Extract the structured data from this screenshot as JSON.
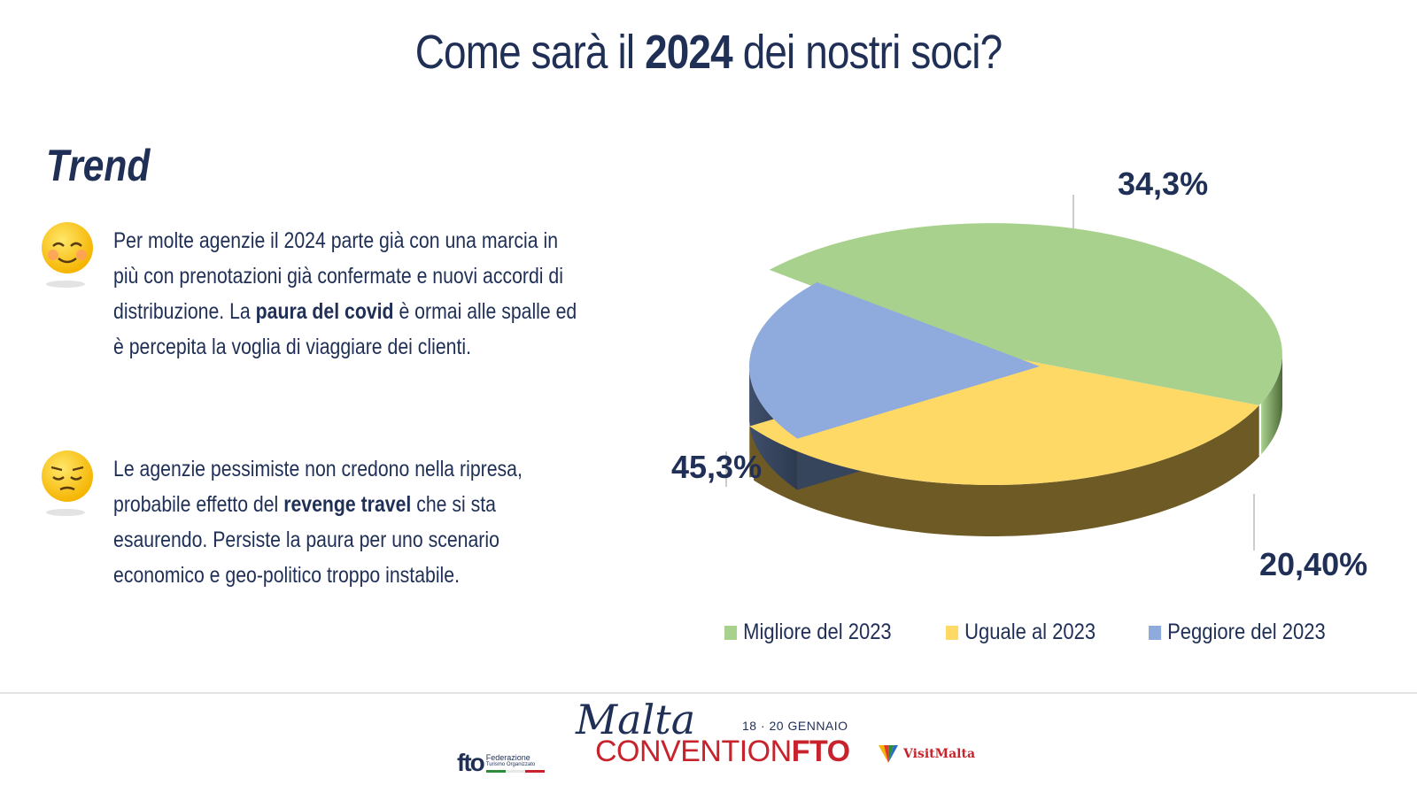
{
  "title": {
    "pre": "Come sarà il ",
    "bold": "2024",
    "post": " dei nostri soci?"
  },
  "section_title": "Trend",
  "paragraphs": [
    {
      "emoji": "smiling-blush-face-icon",
      "before": "Per molte agenzie il 2024 parte già con una marcia in più con prenotazioni già confermate e nuovi accordi di distribuzione. La ",
      "bold": "paura del covid",
      "after": " è ormai alle spalle ed è percepita la voglia di viaggiare dei clienti."
    },
    {
      "emoji": "pensive-face-icon",
      "before": "Le agenzie pessimiste non credono nella ripresa, probabile effetto del ",
      "bold": "revenge travel",
      "after": " che si sta esaurendo. Persiste la paura per uno scenario economico e geo-politico troppo instabile."
    }
  ],
  "chart_data": {
    "type": "pie",
    "style": "3d-exploded",
    "legend_position": "bottom",
    "categories": [
      "Migliore del 2023",
      "Uguale al 2023",
      "Peggiore del 2023"
    ],
    "values": [
      45.3,
      34.3,
      20.4
    ],
    "labels": [
      "45,3%",
      "34,3%",
      "20,40%"
    ],
    "colors": [
      "#a9d18e",
      "#ffd966",
      "#8faadc"
    ],
    "side_colors": [
      "#5f7f47",
      "#6e5a24",
      "#36445c"
    ]
  },
  "footer": {
    "fto_logo": {
      "big": "fto",
      "line1": "Federazione",
      "line2": "Turismo Organizzato"
    },
    "malta_script": "Malta",
    "dates": "18 · 20 GENNAIO",
    "convention_light": "CONVENTION",
    "convention_bold": "FTO",
    "visitmalta": "VisitMalta"
  }
}
